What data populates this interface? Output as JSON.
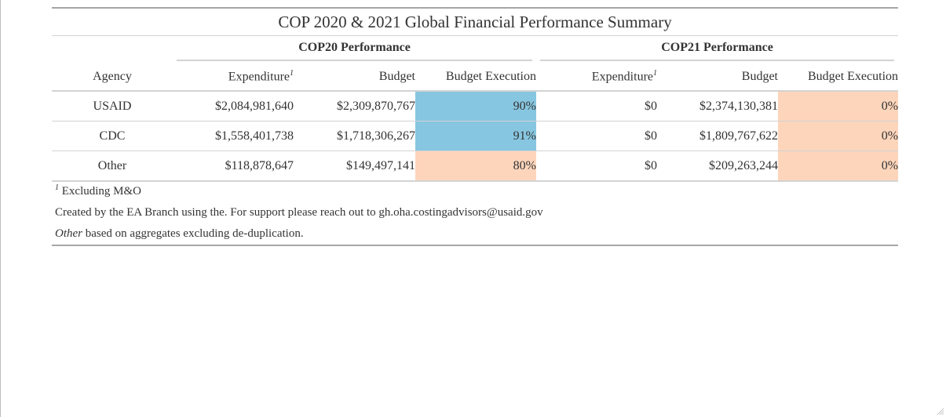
{
  "title": "COP 2020 & 2021 Global Financial Performance Summary",
  "spanners": {
    "cop20": "COP20 Performance",
    "cop21": "COP21 Performance"
  },
  "columns": {
    "agency": "Agency",
    "expenditure": "Expenditure",
    "expenditure_footnote_mark": "1",
    "budget": "Budget",
    "budget_execution": "Budget Execution"
  },
  "colors": {
    "high_execution": "#87c6e0",
    "low_execution": "#fdd5bb"
  },
  "rows": [
    {
      "agency": "USAID",
      "cop20": {
        "expenditure": "$2,084,981,640",
        "budget": "$2,309,870,767",
        "execution": "90%",
        "status": "high"
      },
      "cop21": {
        "expenditure": "$0",
        "budget": "$2,374,130,381",
        "execution": "0%",
        "status": "low"
      }
    },
    {
      "agency": "CDC",
      "cop20": {
        "expenditure": "$1,558,401,738",
        "budget": "$1,718,306,267",
        "execution": "91%",
        "status": "high"
      },
      "cop21": {
        "expenditure": "$0",
        "budget": "$1,809,767,622",
        "execution": "0%",
        "status": "low"
      }
    },
    {
      "agency": "Other",
      "cop20": {
        "expenditure": "$118,878,647",
        "budget": "$149,497,141",
        "execution": "80%",
        "status": "low"
      },
      "cop21": {
        "expenditure": "$0",
        "budget": "$209,263,244",
        "execution": "0%",
        "status": "low"
      }
    }
  ],
  "footnotes": {
    "mark": "1",
    "excluding": "Excluding M&O",
    "created_by": "Created by the EA Branch using the. For support please reach out to gh.oha.costingadvisors@usaid.gov",
    "other_label": "Other",
    "other_text": " based on aggregates excluding de-duplication."
  }
}
